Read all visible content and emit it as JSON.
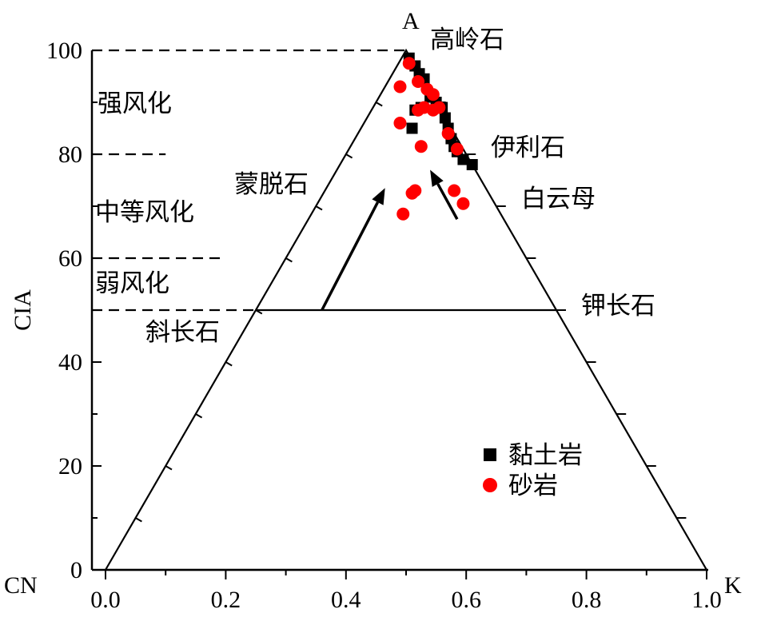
{
  "chart_data": {
    "type": "scatter",
    "title": "",
    "ylabel": "CIA",
    "xlim": [
      0.0,
      1.0
    ],
    "ylim": [
      0,
      100
    ],
    "x_ticks": [
      "0.0",
      "0.2",
      "0.4",
      "0.6",
      "0.8",
      "1.0"
    ],
    "y_ticks": [
      "0",
      "20",
      "40",
      "60",
      "80",
      "100"
    ],
    "vertices": {
      "apex": "A",
      "left": "CN",
      "right": "K"
    },
    "minerals": [
      {
        "name": "高岭石",
        "x": 0.5,
        "cia": 100
      },
      {
        "name": "伊利石",
        "x": 0.6,
        "cia": 83
      },
      {
        "name": "白云母",
        "x": 0.68,
        "cia": 72
      },
      {
        "name": "蒙脱石",
        "x": 0.36,
        "cia": 74
      },
      {
        "name": "钾长石",
        "x": 0.75,
        "cia": 50
      },
      {
        "name": "斜长石",
        "x": 0.25,
        "cia": 50
      }
    ],
    "weathering_zones": [
      {
        "label": "强风化",
        "from": 80,
        "to": 100
      },
      {
        "label": "中等风化",
        "from": 60,
        "to": 80
      },
      {
        "label": "弱风化",
        "from": 50,
        "to": 60
      }
    ],
    "dashed_levels": [
      100,
      80,
      60,
      50
    ],
    "trend_arrows": [
      {
        "from": [
          0.36,
          50
        ],
        "to": [
          0.465,
          73.5
        ]
      },
      {
        "from": [
          0.585,
          67.5
        ],
        "to": [
          0.54,
          77
        ]
      }
    ],
    "legend_position": "lower-right",
    "series": [
      {
        "name": "黏土岩",
        "marker": "square",
        "color": "#000000",
        "points": [
          [
            0.505,
            98.5
          ],
          [
            0.515,
            97
          ],
          [
            0.522,
            95.5
          ],
          [
            0.53,
            94.5
          ],
          [
            0.515,
            88.5
          ],
          [
            0.525,
            89
          ],
          [
            0.51,
            85
          ],
          [
            0.54,
            91
          ],
          [
            0.55,
            90
          ],
          [
            0.56,
            89
          ],
          [
            0.565,
            87
          ],
          [
            0.57,
            85
          ],
          [
            0.575,
            83
          ],
          [
            0.58,
            81.5
          ],
          [
            0.585,
            80.5
          ],
          [
            0.595,
            79
          ],
          [
            0.61,
            78
          ]
        ]
      },
      {
        "name": "砂岩",
        "marker": "circle",
        "color": "#ff0000",
        "points": [
          [
            0.49,
            93
          ],
          [
            0.505,
            97.5
          ],
          [
            0.52,
            94
          ],
          [
            0.535,
            92.5
          ],
          [
            0.545,
            91.5
          ],
          [
            0.555,
            89
          ],
          [
            0.545,
            88.5
          ],
          [
            0.53,
            89
          ],
          [
            0.52,
            88.5
          ],
          [
            0.49,
            86
          ],
          [
            0.525,
            81.5
          ],
          [
            0.57,
            84
          ],
          [
            0.585,
            81
          ],
          [
            0.51,
            72.5
          ],
          [
            0.515,
            73
          ],
          [
            0.58,
            73
          ],
          [
            0.595,
            70.5
          ],
          [
            0.495,
            68.5
          ]
        ]
      }
    ]
  }
}
